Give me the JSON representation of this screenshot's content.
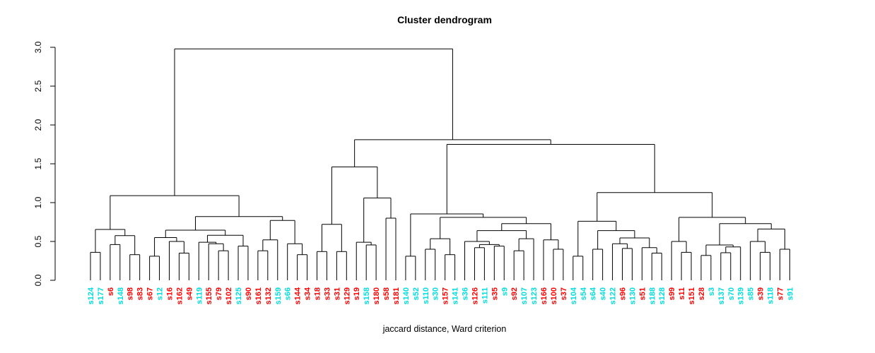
{
  "title": "Cluster dendrogram",
  "caption": "jaccard distance, Ward criterion",
  "colors": {
    "line": "#000000",
    "background": "#ffffff",
    "cyan": "#00dddd",
    "red": "#ff0000"
  },
  "chart_data": {
    "type": "dendrogram",
    "title": "Cluster dendrogram",
    "xlabel": "jaccard distance, Ward criterion",
    "ylabel": "",
    "ylim": [
      0.0,
      3.0
    ],
    "yticks": [
      "0.0",
      "0.5",
      "1.0",
      "1.5",
      "2.0",
      "2.5",
      "3.0"
    ],
    "grid": false,
    "legend": "none",
    "leaf_count": 72,
    "leaves": [
      {
        "label": "s124",
        "color": "cyan"
      },
      {
        "label": "s177",
        "color": "cyan"
      },
      {
        "label": "s6",
        "color": "red"
      },
      {
        "label": "s148",
        "color": "cyan"
      },
      {
        "label": "s98",
        "color": "red"
      },
      {
        "label": "s83",
        "color": "red"
      },
      {
        "label": "s67",
        "color": "red"
      },
      {
        "label": "s12",
        "color": "cyan"
      },
      {
        "label": "s16",
        "color": "red"
      },
      {
        "label": "s162",
        "color": "red"
      },
      {
        "label": "s49",
        "color": "red"
      },
      {
        "label": "s119",
        "color": "cyan"
      },
      {
        "label": "s155",
        "color": "red"
      },
      {
        "label": "s79",
        "color": "red"
      },
      {
        "label": "s102",
        "color": "red"
      },
      {
        "label": "s125",
        "color": "cyan"
      },
      {
        "label": "s90",
        "color": "red"
      },
      {
        "label": "s161",
        "color": "red"
      },
      {
        "label": "s132",
        "color": "red"
      },
      {
        "label": "s159",
        "color": "cyan"
      },
      {
        "label": "s66",
        "color": "cyan"
      },
      {
        "label": "s144",
        "color": "red"
      },
      {
        "label": "s34",
        "color": "red"
      },
      {
        "label": "s18",
        "color": "red"
      },
      {
        "label": "s33",
        "color": "red"
      },
      {
        "label": "s31",
        "color": "red"
      },
      {
        "label": "s129",
        "color": "red"
      },
      {
        "label": "s19",
        "color": "red"
      },
      {
        "label": "s158",
        "color": "cyan"
      },
      {
        "label": "s180",
        "color": "red"
      },
      {
        "label": "s58",
        "color": "red"
      },
      {
        "label": "s181",
        "color": "red"
      },
      {
        "label": "s140",
        "color": "cyan"
      },
      {
        "label": "s52",
        "color": "cyan"
      },
      {
        "label": "s110",
        "color": "cyan"
      },
      {
        "label": "s30",
        "color": "cyan"
      },
      {
        "label": "s157",
        "color": "red"
      },
      {
        "label": "s141",
        "color": "cyan"
      },
      {
        "label": "s36",
        "color": "cyan"
      },
      {
        "label": "s126",
        "color": "red"
      },
      {
        "label": "s111",
        "color": "cyan"
      },
      {
        "label": "s35",
        "color": "red"
      },
      {
        "label": "s9",
        "color": "cyan"
      },
      {
        "label": "s92",
        "color": "red"
      },
      {
        "label": "s107",
        "color": "cyan"
      },
      {
        "label": "s123",
        "color": "cyan"
      },
      {
        "label": "s166",
        "color": "red"
      },
      {
        "label": "s100",
        "color": "red"
      },
      {
        "label": "s37",
        "color": "red"
      },
      {
        "label": "s104",
        "color": "cyan"
      },
      {
        "label": "s54",
        "color": "cyan"
      },
      {
        "label": "s64",
        "color": "cyan"
      },
      {
        "label": "s40",
        "color": "cyan"
      },
      {
        "label": "s122",
        "color": "cyan"
      },
      {
        "label": "s96",
        "color": "red"
      },
      {
        "label": "s130",
        "color": "cyan"
      },
      {
        "label": "s51",
        "color": "red"
      },
      {
        "label": "s188",
        "color": "cyan"
      },
      {
        "label": "s128",
        "color": "cyan"
      },
      {
        "label": "s99",
        "color": "red"
      },
      {
        "label": "s11",
        "color": "red"
      },
      {
        "label": "s151",
        "color": "red"
      },
      {
        "label": "s28",
        "color": "red"
      },
      {
        "label": "s3",
        "color": "cyan"
      },
      {
        "label": "s137",
        "color": "cyan"
      },
      {
        "label": "s70",
        "color": "cyan"
      },
      {
        "label": "s139",
        "color": "cyan"
      },
      {
        "label": "s85",
        "color": "cyan"
      },
      {
        "label": "s39",
        "color": "red"
      },
      {
        "label": "s118",
        "color": "cyan"
      },
      {
        "label": "s77",
        "color": "red"
      },
      {
        "label": "s91",
        "color": "cyan"
      }
    ],
    "tree": [
      2.98,
      [
        1.09,
        [
          0.655,
          [
            0.36,
            "s124",
            "s177"
          ],
          [
            0.575,
            [
              0.46,
              "s6",
              "s148"
            ],
            [
              0.33,
              "s98",
              "s83"
            ]
          ]
        ],
        [
          0.82,
          [
            0.645,
            [
              0.55,
              [
                0.31,
                "s67",
                "s12"
              ],
              [
                0.5,
                "s16",
                [
                  0.35,
                  "s162",
                  "s49"
                ]
              ]
            ],
            [
              0.58,
              [
                0.49,
                "s119",
                [
                  0.47,
                  "s155",
                  [
                    0.38,
                    "s79",
                    "s102"
                  ]
                ]
              ],
              [
                0.44,
                "s125",
                "s90"
              ]
            ]
          ],
          [
            0.77,
            [
              0.52,
              [
                0.38,
                "s161",
                "s132"
              ],
              "s159"
            ],
            [
              0.47,
              "s66",
              [
                0.33,
                "s144",
                "s34"
              ]
            ]
          ]
        ]
      ],
      [
        1.81,
        [
          1.46,
          [
            0.72,
            [
              0.37,
              "s18",
              "s33"
            ],
            [
              0.37,
              "s31",
              "s129"
            ]
          ],
          [
            1.06,
            [
              0.49,
              "s19",
              [
                0.455,
                "s158",
                "s180"
              ]
            ],
            [
              0.8,
              "s58",
              "s181"
            ]
          ]
        ],
        [
          1.75,
          [
            0.855,
            [
              0.31,
              "s140",
              "s52"
            ],
            [
              0.81,
              [
                0.535,
                [
                  0.4,
                  "s110",
                  "s30"
                ],
                [
                  0.33,
                  "s157",
                  "s141"
                ]
              ],
              [
                0.73,
                [
                  0.64,
                  [
                    0.5,
                    "s36",
                    [
                      0.46,
                      [
                        0.42,
                        "s126",
                        "s111"
                      ],
                      [
                        0.44,
                        "s35",
                        "s9"
                      ]
                    ]
                  ],
                  [
                    0.535,
                    [
                      0.38,
                      "s92",
                      "s107"
                    ],
                    "s123"
                  ]
                ],
                [
                  0.52,
                  "s166",
                  [
                    0.4,
                    "s100",
                    "s37"
                  ]
                ]
              ]
            ]
          ],
          [
            1.13,
            [
              0.76,
              [
                0.31,
                "s104",
                "s54"
              ],
              [
                0.64,
                [
                  0.4,
                  "s64",
                  "s40"
                ],
                [
                  0.545,
                  [
                    0.47,
                    "s122",
                    [
                      0.41,
                      "s96",
                      "s130"
                    ]
                  ],
                  [
                    0.42,
                    "s51",
                    [
                      0.35,
                      "s188",
                      "s128"
                    ]
                  ]
                ]
              ]
            ],
            [
              0.81,
              [
                0.5,
                "s99",
                [
                  0.36,
                  "s11",
                  "s151"
                ]
              ],
              [
                0.73,
                [
                  0.455,
                  [
                    0.32,
                    "s28",
                    "s3"
                  ],
                  [
                    0.43,
                    [
                      0.355,
                      "s137",
                      "s70"
                    ],
                    "s139"
                  ]
                ],
                [
                  0.66,
                  [
                    0.5,
                    "s85",
                    [
                      0.36,
                      "s39",
                      "s118"
                    ]
                  ],
                  [
                    0.4,
                    "s77",
                    "s91"
                  ]
                ]
              ]
            ]
          ]
        ]
      ]
    ]
  }
}
